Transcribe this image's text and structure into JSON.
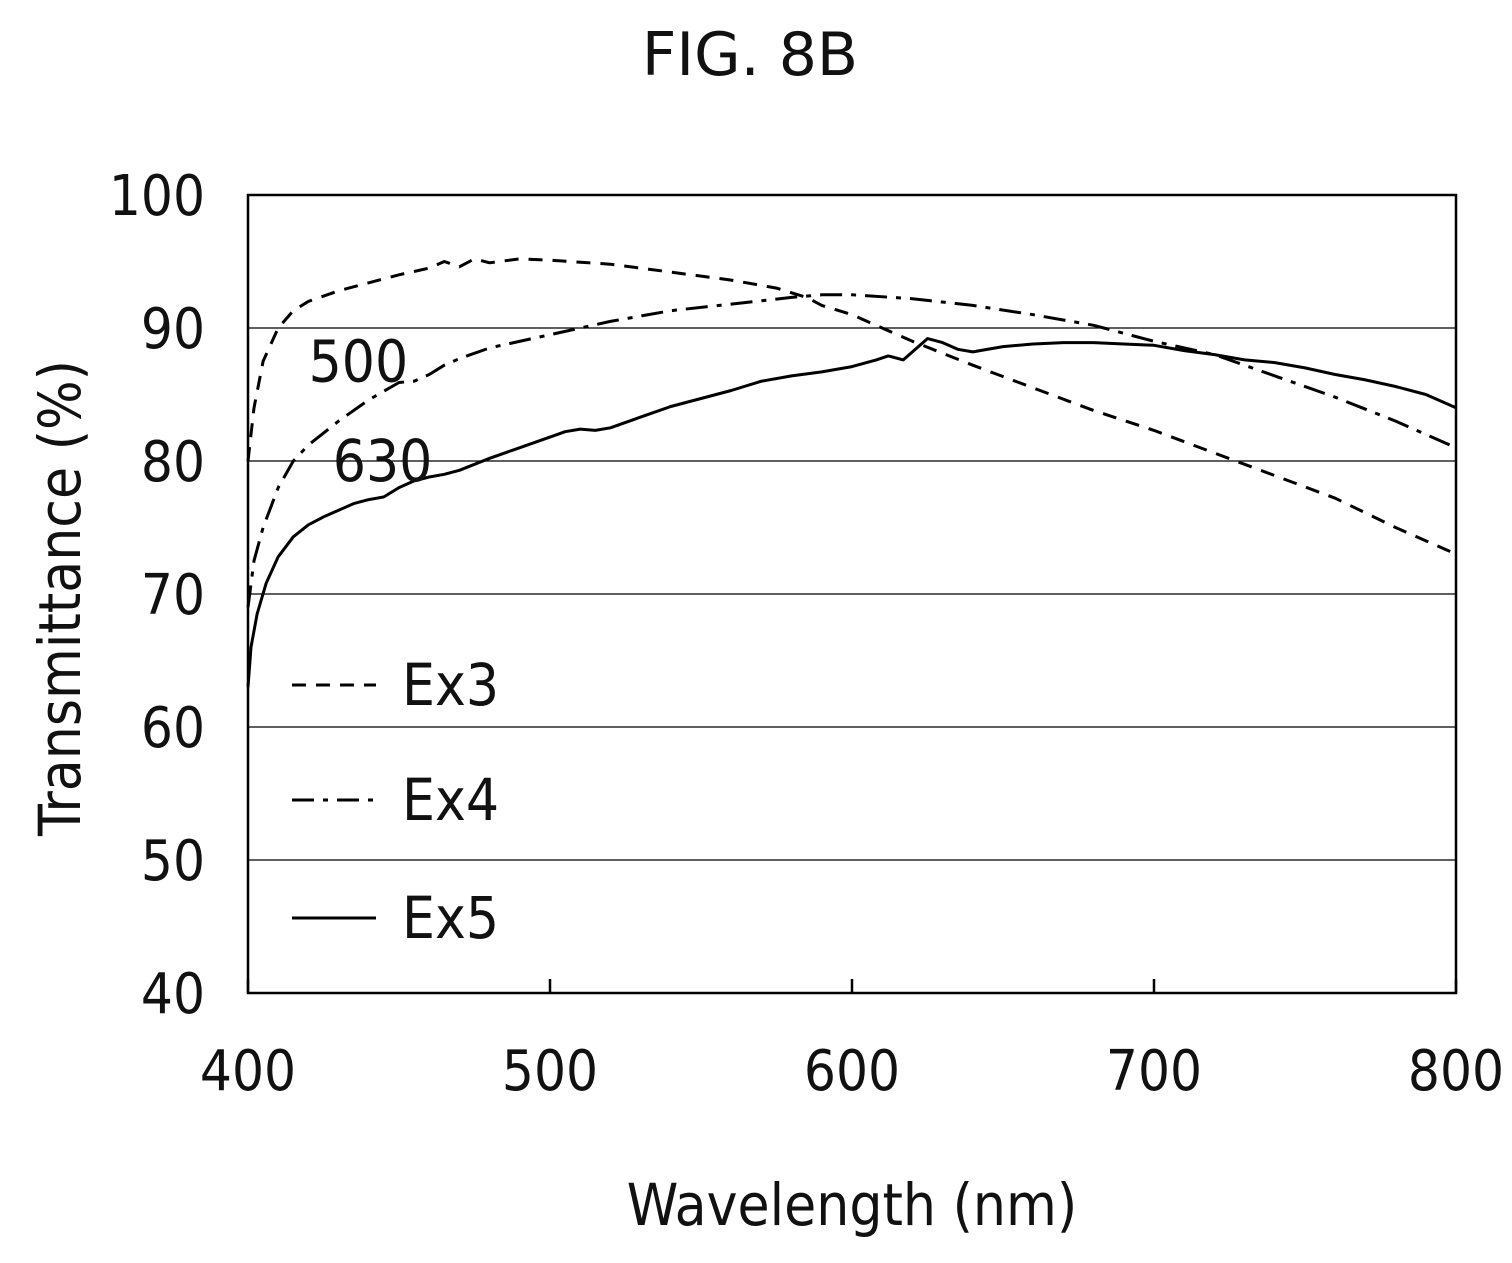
{
  "figure": {
    "title": "FIG. 8B"
  },
  "chart_data": {
    "type": "line",
    "xlabel": "Wavelength (nm)",
    "ylabel": "Transmittance (%)",
    "xlim": [
      400,
      800
    ],
    "ylim": [
      40,
      100
    ],
    "x_ticks": [
      "400",
      "500",
      "600",
      "700",
      "800"
    ],
    "y_ticks": [
      "40",
      "50",
      "60",
      "70",
      "80",
      "90",
      "100"
    ],
    "grid_y": [
      50,
      60,
      70,
      80,
      90
    ],
    "legend_position": "lower-left",
    "annotations": [
      {
        "text": "500",
        "x": 430,
        "y": 87.5
      },
      {
        "text": "630",
        "x": 438,
        "y": 80.0
      }
    ],
    "series": [
      {
        "name": "Ex3",
        "style": "dashed",
        "x": [
          400,
          402,
          405,
          410,
          415,
          420,
          430,
          440,
          450,
          460,
          465,
          470,
          475,
          480,
          490,
          500,
          520,
          540,
          560,
          575,
          585,
          590,
          600,
          610,
          620,
          640,
          660,
          680,
          700,
          720,
          740,
          760,
          780,
          800
        ],
        "y": [
          80.0,
          84.0,
          87.5,
          90.0,
          91.3,
          92.0,
          92.8,
          93.4,
          94.0,
          94.5,
          95.0,
          94.6,
          95.2,
          94.9,
          95.2,
          95.1,
          94.8,
          94.2,
          93.6,
          93.0,
          92.3,
          91.7,
          91.0,
          90.0,
          89.0,
          87.2,
          85.5,
          83.8,
          82.3,
          80.6,
          78.9,
          77.2,
          75.0,
          73.0
        ]
      },
      {
        "name": "Ex4",
        "style": "dashdot",
        "x": [
          400,
          402,
          405,
          410,
          415,
          420,
          430,
          440,
          450,
          455,
          460,
          465,
          470,
          480,
          500,
          520,
          540,
          560,
          580,
          590,
          600,
          620,
          640,
          660,
          680,
          700,
          720,
          740,
          760,
          780,
          800
        ],
        "y": [
          69.0,
          72.5,
          75.0,
          78.0,
          80.0,
          81.2,
          83.0,
          84.6,
          85.9,
          86.0,
          86.5,
          87.2,
          87.7,
          88.5,
          89.5,
          90.5,
          91.3,
          91.8,
          92.3,
          92.5,
          92.5,
          92.2,
          91.7,
          91.0,
          90.2,
          89.0,
          88.0,
          86.4,
          84.8,
          83.0,
          81.0
        ]
      },
      {
        "name": "Ex5",
        "style": "solid",
        "x": [
          400,
          401,
          403,
          406,
          410,
          415,
          420,
          425,
          430,
          435,
          440,
          445,
          450,
          455,
          460,
          465,
          470,
          480,
          490,
          500,
          505,
          510,
          515,
          520,
          530,
          540,
          550,
          560,
          570,
          580,
          590,
          600,
          608,
          612,
          617,
          620,
          625,
          630,
          635,
          640,
          650,
          660,
          670,
          680,
          690,
          700,
          710,
          720,
          730,
          740,
          750,
          760,
          770,
          780,
          790,
          800
        ],
        "y": [
          63.0,
          66.0,
          68.5,
          70.8,
          72.8,
          74.3,
          75.2,
          75.8,
          76.3,
          76.8,
          77.1,
          77.3,
          78.0,
          78.5,
          78.8,
          79.0,
          79.3,
          80.2,
          81.0,
          81.8,
          82.2,
          82.4,
          82.3,
          82.5,
          83.3,
          84.1,
          84.7,
          85.3,
          86.0,
          86.4,
          86.7,
          87.1,
          87.6,
          87.9,
          87.6,
          88.2,
          89.2,
          88.9,
          88.4,
          88.2,
          88.6,
          88.8,
          88.9,
          88.9,
          88.8,
          88.7,
          88.3,
          88.0,
          87.6,
          87.4,
          87.0,
          86.5,
          86.1,
          85.6,
          85.0,
          84.0
        ]
      }
    ]
  }
}
